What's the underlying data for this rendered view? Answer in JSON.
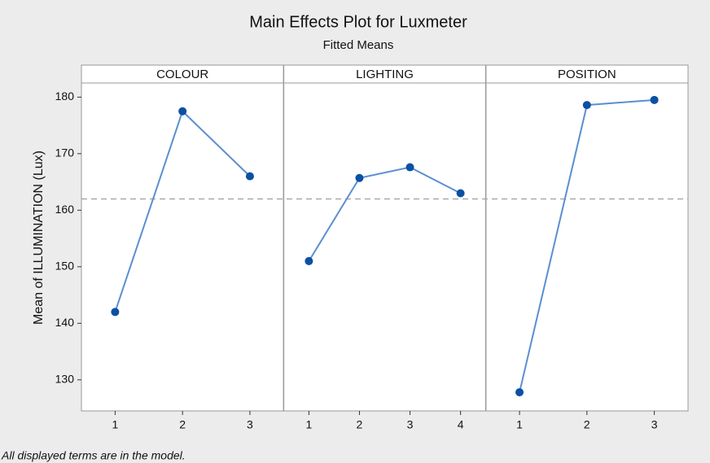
{
  "chart_data": {
    "type": "line",
    "title": "Main Effects Plot for Luxmeter",
    "subtitle": "Fitted Means",
    "y_label": "Mean of ILLUMINATION (Lux)",
    "footnote": "All displayed terms are in the model.",
    "ylim": [
      124.5,
      182.5
    ],
    "yticks": [
      130,
      140,
      150,
      160,
      170,
      180
    ],
    "reference_line": 162,
    "line_color": "#5a8fd0",
    "marker_color": "#0b50a3",
    "reference_color": "#aaaaaa",
    "panels": [
      {
        "name": "COLOUR",
        "categories": [
          "1",
          "2",
          "3"
        ],
        "values": [
          142,
          177.5,
          166
        ]
      },
      {
        "name": "LIGHTING",
        "categories": [
          "1",
          "2",
          "3",
          "4"
        ],
        "values": [
          151,
          165.7,
          167.6,
          163
        ]
      },
      {
        "name": "POSITION",
        "categories": [
          "1",
          "2",
          "3"
        ],
        "values": [
          127.8,
          178.6,
          179.5
        ]
      }
    ]
  }
}
